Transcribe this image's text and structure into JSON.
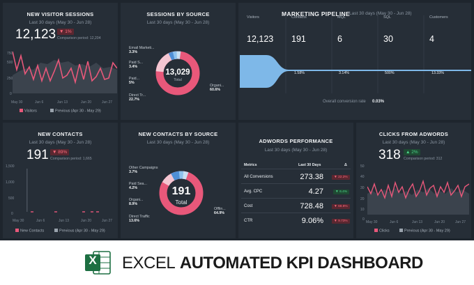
{
  "new_visitor_sessions": {
    "title": "NEW VISITOR SESSIONS",
    "period": "Last 30 days (May 30 - Jun 28)",
    "value": "12,123",
    "change": "▼ 1%",
    "comparison": "Comparison period: 12,204",
    "y_ticks": [
      "750",
      "500",
      "250",
      "0"
    ],
    "x_ticks": [
      "May 30",
      "Jun 6",
      "Jun 13",
      "Jun 20",
      "Jun 27"
    ],
    "legend_current": "Visitors",
    "legend_previous": "Previous (Apr 30 - May 29)"
  },
  "sessions_by_source": {
    "title": "SESSIONS BY SOURCE",
    "period": "Last 30 days (May 30 - Jun 28)",
    "total_value": "13,029",
    "total_label": "Total",
    "labels": [
      {
        "name": "Email Marketi...",
        "pct": "3.3%"
      },
      {
        "name": "Paid S...",
        "pct": "3.4%"
      },
      {
        "name": "Paid...",
        "pct": "5%"
      },
      {
        "name": "Direct Tr...",
        "pct": "22.7%"
      },
      {
        "name": "Organi...",
        "pct": "60.6%"
      }
    ]
  },
  "marketing_pipeline": {
    "title": "MARKETING PIPELINE",
    "period": "Last 30 days (May 30 - Jun 28)",
    "columns": [
      {
        "name": "Visitors",
        "value": "12,123"
      },
      {
        "name": "Contacts",
        "value": "191"
      },
      {
        "name": "MQL",
        "value": "6"
      },
      {
        "name": "SQL",
        "value": "30"
      },
      {
        "name": "Customers",
        "value": "4"
      }
    ],
    "conversions": [
      "1.58%",
      "3.14%",
      "500%",
      "13.33%"
    ],
    "overall_label": "Overall conversion rate",
    "overall_value": "0.03%"
  },
  "new_contacts": {
    "title": "NEW CONTACTS",
    "period": "Last 30 days (May 30 - Jun 28)",
    "value": "191",
    "change": "▼ 89%",
    "comparison": "Comparison period: 1,665",
    "y_ticks": [
      "1,500",
      "1,000",
      "500",
      "0"
    ],
    "x_ticks": [
      "May 30",
      "Jun 6",
      "Jun 13",
      "Jun 20",
      "Jun 27"
    ],
    "legend_current": "New Contacts",
    "legend_previous": "Previous (Apr 30 - May 29)"
  },
  "new_contacts_by_source": {
    "title": "NEW CONTACTS BY SOURCE",
    "period": "Last 30 days (May 30 - Jun 28)",
    "total_value": "191",
    "total_label": "Total",
    "labels": [
      {
        "name": "Other Campaigns",
        "pct": "3.7%"
      },
      {
        "name": "Paid Sea...",
        "pct": "4.2%"
      },
      {
        "name": "Organi...",
        "pct": "8.9%"
      },
      {
        "name": "Direct Traffic",
        "pct": "13.6%"
      },
      {
        "name": "Offlin...",
        "pct": "64.9%"
      }
    ]
  },
  "adwords_performance": {
    "title": "ADWORDS PERFORMANCE",
    "period": "Last 30 days (May 30 - Jun 28)",
    "header_metrics": "Metrics",
    "header_period": "Last 30 Days",
    "header_delta": "Δ",
    "rows": [
      {
        "metric": "All Conversions",
        "value": "273.38",
        "delta": "▼ 22.2%",
        "dir": "down"
      },
      {
        "metric": "Avg. CPC",
        "value": "4.27",
        "delta": "▼ 6.4%",
        "dir": "down-good"
      },
      {
        "metric": "Cost",
        "value": "728.48",
        "delta": "▼ 68.8%",
        "dir": "down"
      },
      {
        "metric": "CTR",
        "value": "9.06%",
        "delta": "▼ 9.73%",
        "dir": "down"
      }
    ]
  },
  "clicks_from_adwords": {
    "title": "CLICKS FROM ADWORDS",
    "period": "Last 30 days (May 30 - Jun 28)",
    "value": "318",
    "change": "▲ 2%",
    "comparison": "Comparison period: 312",
    "y_ticks": [
      "50",
      "40",
      "30",
      "20",
      "10",
      "0"
    ],
    "x_ticks": [
      "May 30",
      "Jun 6",
      "Jun 13",
      "Jun 20",
      "Jun 27"
    ],
    "legend_current": "Clicks",
    "legend_previous": "Previous (Apr 30 - May 29)"
  },
  "footer": {
    "word1": "EXCEL",
    "word2": "AUTOMATED KPI DASHBOARD",
    "logo_letter": "X"
  },
  "colors": {
    "accent": "#e8587a",
    "panel": "#262e37",
    "background": "#1e252d",
    "pipeline_blue": "#7eb8e8",
    "excel_green": "#1d6f42"
  }
}
